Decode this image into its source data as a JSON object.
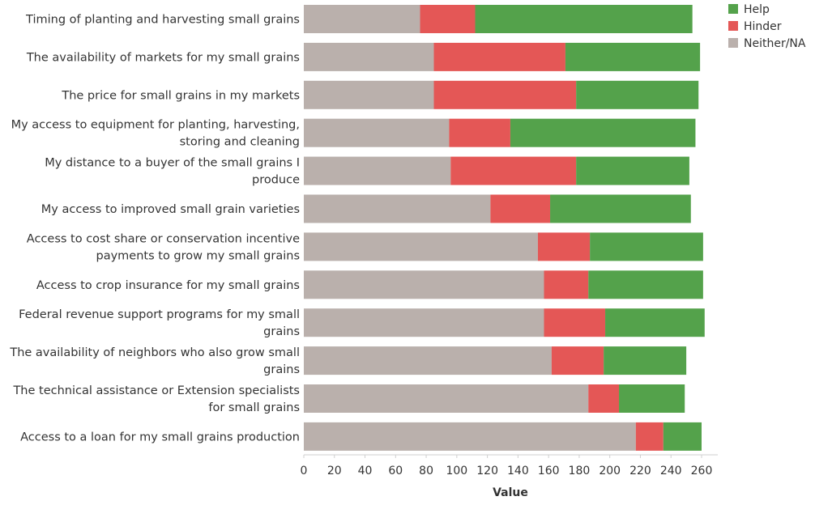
{
  "chart_data": {
    "type": "bar",
    "orientation": "horizontal",
    "stacked": true,
    "title": "",
    "xlabel": "Value",
    "ylabel": "",
    "xlim": [
      0,
      260
    ],
    "xticks": [
      0,
      20,
      40,
      60,
      80,
      100,
      120,
      140,
      160,
      180,
      200,
      220,
      240,
      260
    ],
    "grid": false,
    "legend_position": "top-right",
    "categories": [
      [
        "Timing of planting and harvesting small grains"
      ],
      [
        "The availability of markets for my small grains"
      ],
      [
        "The price for small grains in my markets"
      ],
      [
        "My access to equipment for planting, harvesting,",
        "storing and cleaning"
      ],
      [
        "My distance to a buyer of the small grains I",
        "produce"
      ],
      [
        "My access to improved small grain varieties"
      ],
      [
        "Access to cost share or conservation incentive",
        "payments to grow my small grains"
      ],
      [
        "Access to crop insurance for my small grains"
      ],
      [
        "Federal revenue support programs for my small",
        "grains"
      ],
      [
        "The availability of neighbors who also grow small",
        "grains"
      ],
      [
        "The technical assistance or Extension specialists",
        "for small grains"
      ],
      [
        "Access to a loan for my small grains production"
      ]
    ],
    "series": [
      {
        "name": "Neither/NA",
        "color": "#bab0ac",
        "values": [
          76,
          85,
          85,
          95,
          96,
          122,
          153,
          157,
          157,
          162,
          186,
          217
        ]
      },
      {
        "name": "Hinder",
        "color": "#e45756",
        "values": [
          36,
          86,
          93,
          40,
          82,
          39,
          34,
          29,
          40,
          34,
          20,
          18
        ]
      },
      {
        "name": "Help",
        "color": "#54a24b",
        "values": [
          142,
          88,
          80,
          121,
          74,
          92,
          74,
          75,
          65,
          54,
          43,
          25
        ]
      }
    ],
    "legend": [
      {
        "name": "Help",
        "color": "#54a24b"
      },
      {
        "name": "Hinder",
        "color": "#e45756"
      },
      {
        "name": "Neither/NA",
        "color": "#bab0ac"
      }
    ]
  }
}
